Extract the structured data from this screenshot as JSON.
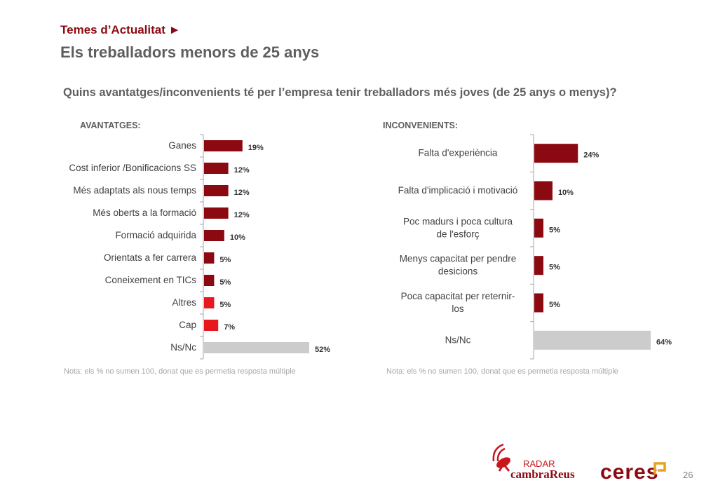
{
  "header": {
    "section": "Temes d’Actualitat ►",
    "title": "Els treballadors menors de 25 anys",
    "question": "Quins avantatges/inconvenients té per l’empresa tenir treballadors més joves (de 25 anys o menys)?"
  },
  "footer": {
    "page_number": "26",
    "logo_radar_top": "RADAR",
    "logo_radar_bottom": "cambraReus",
    "logo_ceres": "ceres"
  },
  "chart_data": [
    {
      "type": "bar",
      "orientation": "horizontal",
      "title": "AVANTATGES:",
      "categories": [
        "Ganes",
        "Cost inferior /Bonificacions SS",
        "Més adaptats als nous temps",
        "Més oberts a la formació",
        "Formació adquirida",
        "Orientats a fer carrera",
        "Coneixement en TICs",
        "Altres",
        "Cap",
        "Ns/Nc"
      ],
      "values": [
        19,
        12,
        12,
        12,
        10,
        5,
        5,
        5,
        7,
        52
      ],
      "value_labels": [
        "19%",
        "12%",
        "12%",
        "12%",
        "10%",
        "5%",
        "5%",
        "5%",
        "7%",
        "52%"
      ],
      "colors": [
        "#8b0a12",
        "#8b0a12",
        "#8b0a12",
        "#8b0a12",
        "#8b0a12",
        "#8b0a12",
        "#8b0a12",
        "#e8181f",
        "#e8181f",
        "#cccccc"
      ],
      "xlim": [
        0,
        52
      ],
      "grid": false,
      "note": "Nota: els % no sumen 100, donat que es permetia resposta múltiple"
    },
    {
      "type": "bar",
      "orientation": "horizontal",
      "title": "INCONVENIENTS:",
      "categories": [
        [
          "Falta d'experiència"
        ],
        [
          "Falta d'implicació i motivació"
        ],
        [
          "Poc madurs i poca cultura",
          "de l'esforç"
        ],
        [
          "Menys capacitat per pendre",
          "desicions"
        ],
        [
          "Poca capacitat per reternir-",
          "los"
        ],
        [
          "Ns/Nc"
        ]
      ],
      "values": [
        24,
        10,
        5,
        5,
        5,
        64
      ],
      "value_labels": [
        "24%",
        "10%",
        "5%",
        "5%",
        "5%",
        "64%"
      ],
      "colors": [
        "#8b0a12",
        "#8b0a12",
        "#8b0a12",
        "#8b0a12",
        "#8b0a12",
        "#cccccc"
      ],
      "xlim": [
        0,
        64
      ],
      "grid": false,
      "note": "Nota: els % no sumen 100, donat que es permetia resposta múltiple"
    }
  ]
}
